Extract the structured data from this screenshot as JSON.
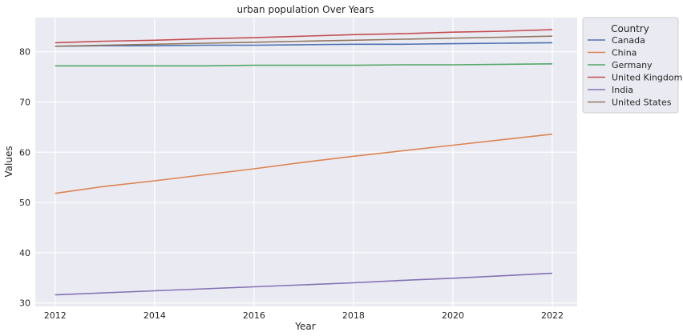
{
  "chart_data": {
    "type": "line",
    "title": "urban population Over Years",
    "xlabel": "Year",
    "ylabel": "Values",
    "x": [
      2012,
      2013,
      2014,
      2015,
      2016,
      2017,
      2018,
      2019,
      2020,
      2021,
      2022
    ],
    "xticks": [
      2012,
      2014,
      2016,
      2018,
      2020,
      2022
    ],
    "yticks": [
      30,
      40,
      50,
      60,
      70,
      80
    ],
    "xlim": [
      2011.6,
      2022.5
    ],
    "ylim": [
      29.3,
      86.8
    ],
    "grid": true,
    "legend": {
      "title": "Country",
      "placement": "outside-top-right"
    },
    "background_color": "#eaeaf2",
    "series": [
      {
        "name": "Canada",
        "color": "#4c72b0",
        "values": [
          81.1,
          81.2,
          81.2,
          81.3,
          81.3,
          81.4,
          81.5,
          81.5,
          81.6,
          81.7,
          81.8
        ]
      },
      {
        "name": "China",
        "color": "#dd8452",
        "values": [
          51.8,
          53.2,
          54.3,
          55.5,
          56.7,
          58.0,
          59.2,
          60.3,
          61.4,
          62.5,
          63.6
        ]
      },
      {
        "name": "Germany",
        "color": "#55a868",
        "values": [
          77.2,
          77.2,
          77.2,
          77.2,
          77.3,
          77.3,
          77.3,
          77.4,
          77.4,
          77.5,
          77.6
        ]
      },
      {
        "name": "United Kingdom",
        "color": "#c44e52",
        "values": [
          81.8,
          82.1,
          82.3,
          82.6,
          82.8,
          83.1,
          83.4,
          83.6,
          83.9,
          84.1,
          84.4
        ]
      },
      {
        "name": "India",
        "color": "#8172b3",
        "values": [
          31.6,
          32.0,
          32.4,
          32.8,
          33.2,
          33.6,
          34.0,
          34.5,
          34.9,
          35.4,
          35.9
        ]
      },
      {
        "name": "United States",
        "color": "#937860",
        "values": [
          81.1,
          81.3,
          81.5,
          81.7,
          81.9,
          82.1,
          82.3,
          82.5,
          82.7,
          82.9,
          83.1
        ]
      }
    ]
  }
}
